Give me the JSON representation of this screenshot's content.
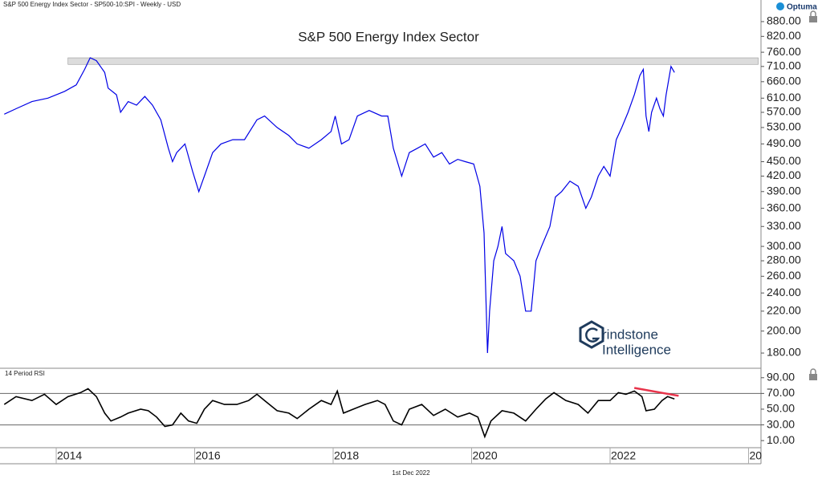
{
  "header": "S&P 500 Energy Index Sector  - SP500-10:SPI - Weekly - USD",
  "brand": "Optuma",
  "date_label": "1st Dec 2022",
  "watermark": [
    "rindstone",
    "Intelligence"
  ],
  "chart_data": [
    {
      "type": "line",
      "title": "S&P 500 Energy Index Sector",
      "log_y": true,
      "color": "#0000e6",
      "x": [
        2013.25,
        2013.42,
        2013.65,
        2013.88,
        2014.12,
        2014.29,
        2014.41,
        2014.49,
        2014.58,
        2014.7,
        2014.75,
        2014.87,
        2014.93,
        2015.04,
        2015.16,
        2015.28,
        2015.39,
        2015.51,
        2015.62,
        2015.68,
        2015.74,
        2015.86,
        2015.97,
        2016.06,
        2016.14,
        2016.26,
        2016.38,
        2016.55,
        2016.72,
        2016.9,
        2017.01,
        2017.19,
        2017.36,
        2017.48,
        2017.65,
        2017.83,
        2017.97,
        2018.03,
        2018.12,
        2018.23,
        2018.35,
        2018.52,
        2018.7,
        2018.79,
        2018.87,
        2018.99,
        2019.1,
        2019.22,
        2019.33,
        2019.45,
        2019.57,
        2019.68,
        2019.8,
        2019.91,
        2020.03,
        2020.12,
        2020.18,
        2020.23,
        2020.26,
        2020.32,
        2020.38,
        2020.44,
        2020.49,
        2020.61,
        2020.7,
        2020.78,
        2020.86,
        2020.93,
        2021.01,
        2021.13,
        2021.21,
        2021.3,
        2021.42,
        2021.54,
        2021.65,
        2021.73,
        2021.83,
        2021.91,
        2022.0,
        2022.09,
        2022.17,
        2022.26,
        2022.35,
        2022.43,
        2022.48,
        2022.52,
        2022.56,
        2022.6,
        2022.67,
        2022.72,
        2022.77,
        2022.81,
        2022.88,
        2022.93
      ],
      "values": [
        565,
        580,
        600,
        610,
        630,
        650,
        700,
        740,
        730,
        690,
        640,
        620,
        570,
        600,
        590,
        615,
        590,
        550,
        480,
        450,
        470,
        490,
        430,
        390,
        420,
        470,
        490,
        500,
        500,
        550,
        560,
        530,
        510,
        490,
        480,
        500,
        520,
        560,
        490,
        500,
        560,
        575,
        560,
        560,
        480,
        420,
        470,
        480,
        490,
        460,
        470,
        445,
        455,
        450,
        445,
        400,
        320,
        180,
        220,
        280,
        300,
        330,
        290,
        280,
        260,
        220,
        220,
        280,
        300,
        330,
        380,
        390,
        410,
        400,
        360,
        380,
        420,
        440,
        420,
        500,
        530,
        570,
        620,
        680,
        700,
        560,
        520,
        570,
        610,
        580,
        560,
        620,
        710,
        690
      ],
      "band": {
        "x": [
          2014.17,
          2024.14
        ],
        "range": [
          717,
          740
        ],
        "color": "#dcdcdc"
      },
      "xlim": [
        2013.188,
        2024.18
      ],
      "ylim": [
        168,
        932
      ],
      "yticks": [
        {
          "value": 180,
          "label": "180.00"
        },
        {
          "value": 200,
          "label": "200.00"
        },
        {
          "value": 220,
          "label": "220.00"
        },
        {
          "value": 240,
          "label": "240.00"
        },
        {
          "value": 260,
          "label": "260.00"
        },
        {
          "value": 280,
          "label": "280.00"
        },
        {
          "value": 300,
          "label": "300.00"
        },
        {
          "value": 330,
          "label": "330.00"
        },
        {
          "value": 360,
          "label": "360.00"
        },
        {
          "value": 390,
          "label": "390.00"
        },
        {
          "value": 420,
          "label": "420.00"
        },
        {
          "value": 450,
          "label": "450.00"
        },
        {
          "value": 490,
          "label": "490.00"
        },
        {
          "value": 530,
          "label": "530.00"
        },
        {
          "value": 570,
          "label": "570.00"
        },
        {
          "value": 610,
          "label": "610.00"
        },
        {
          "value": 660,
          "label": "660.00"
        },
        {
          "value": 710,
          "label": "710.00"
        },
        {
          "value": 760,
          "label": "760.00"
        },
        {
          "value": 820,
          "label": "820.00"
        },
        {
          "value": 880,
          "label": "880.00"
        }
      ]
    },
    {
      "type": "line",
      "title": "14 Period RSI",
      "color": "#000000",
      "x": [
        2013.25,
        2013.42,
        2013.65,
        2013.83,
        2014.0,
        2014.17,
        2014.35,
        2014.46,
        2014.58,
        2014.7,
        2014.79,
        2014.93,
        2015.04,
        2015.22,
        2015.33,
        2015.45,
        2015.57,
        2015.68,
        2015.8,
        2015.91,
        2016.03,
        2016.14,
        2016.26,
        2016.43,
        2016.61,
        2016.78,
        2016.9,
        2017.01,
        2017.19,
        2017.36,
        2017.48,
        2017.65,
        2017.83,
        2017.97,
        2018.06,
        2018.15,
        2018.29,
        2018.46,
        2018.64,
        2018.75,
        2018.87,
        2018.99,
        2019.1,
        2019.28,
        2019.45,
        2019.62,
        2019.8,
        2019.97,
        2020.09,
        2020.19,
        2020.28,
        2020.44,
        2020.61,
        2020.78,
        2020.93,
        2021.07,
        2021.19,
        2021.36,
        2021.54,
        2021.68,
        2021.83,
        2022.0,
        2022.12,
        2022.23,
        2022.35,
        2022.46,
        2022.52,
        2022.64,
        2022.75,
        2022.83,
        2022.93
      ],
      "values": [
        56,
        66,
        61,
        69,
        56,
        66,
        71,
        76,
        66,
        45,
        35,
        40,
        45,
        50,
        48,
        40,
        28,
        30,
        45,
        35,
        32,
        50,
        61,
        56,
        56,
        61,
        69,
        61,
        48,
        45,
        38,
        50,
        61,
        56,
        73,
        45,
        50,
        56,
        61,
        56,
        35,
        30,
        50,
        56,
        42,
        50,
        40,
        45,
        40,
        15,
        35,
        48,
        45,
        35,
        50,
        63,
        71,
        61,
        56,
        45,
        61,
        61,
        71,
        69,
        73,
        66,
        48,
        50,
        61,
        66,
        63
      ],
      "reference_lines": [
        30,
        70
      ],
      "trend_line": {
        "x": [
          2022.35,
          2022.99
        ],
        "values": [
          77,
          67
        ],
        "color": "#e8334a"
      },
      "xlim": [
        2013.188,
        2024.18
      ],
      "ylim": [
        2,
        101
      ],
      "xticks": [
        2014,
        2016,
        2018,
        2020,
        2022,
        {
          "value": 2024,
          "label": "20"
        }
      ],
      "yticks": [
        {
          "value": 10,
          "label": "10.00"
        },
        {
          "value": 30,
          "label": "30.00"
        },
        {
          "value": 50,
          "label": "50.00"
        },
        {
          "value": 70,
          "label": "70.00"
        },
        {
          "value": 90,
          "label": "90.00"
        }
      ]
    }
  ]
}
